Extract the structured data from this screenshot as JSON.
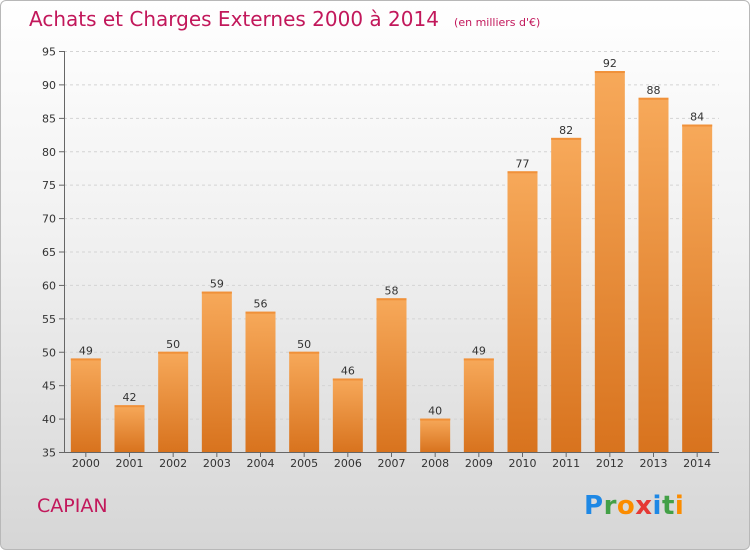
{
  "header": {
    "title": "Achats et Charges Externes 2000 à 2014",
    "subtitle": "(en milliers d'€)"
  },
  "footer": {
    "city": "CAPIAN",
    "logo_letters": [
      {
        "char": "P",
        "color": "#1e88e5"
      },
      {
        "char": "r",
        "color": "#43a047"
      },
      {
        "char": "o",
        "color": "#fb8c00"
      },
      {
        "char": "x",
        "color": "#e53935"
      },
      {
        "char": "i",
        "color": "#1e88e5"
      },
      {
        "char": "t",
        "color": "#43a047"
      },
      {
        "char": "i",
        "color": "#fb8c00"
      }
    ]
  },
  "chart_data": {
    "type": "bar",
    "title": "Achats et Charges Externes 2000 à 2014",
    "subtitle": "(en milliers d'€)",
    "categories": [
      "2000",
      "2001",
      "2002",
      "2003",
      "2004",
      "2005",
      "2006",
      "2007",
      "2008",
      "2009",
      "2010",
      "2011",
      "2012",
      "2013",
      "2014"
    ],
    "values": [
      49,
      42,
      50,
      59,
      56,
      50,
      46,
      58,
      40,
      49,
      77,
      82,
      92,
      88,
      84
    ],
    "ylim": [
      35,
      95
    ],
    "yticks": [
      35,
      40,
      45,
      50,
      55,
      60,
      65,
      70,
      75,
      80,
      85,
      90,
      95
    ],
    "grid": true,
    "bar_color": "#f0913a",
    "bar_color_light": "#f7a95a",
    "bar_color_dark": "#d8731e"
  }
}
